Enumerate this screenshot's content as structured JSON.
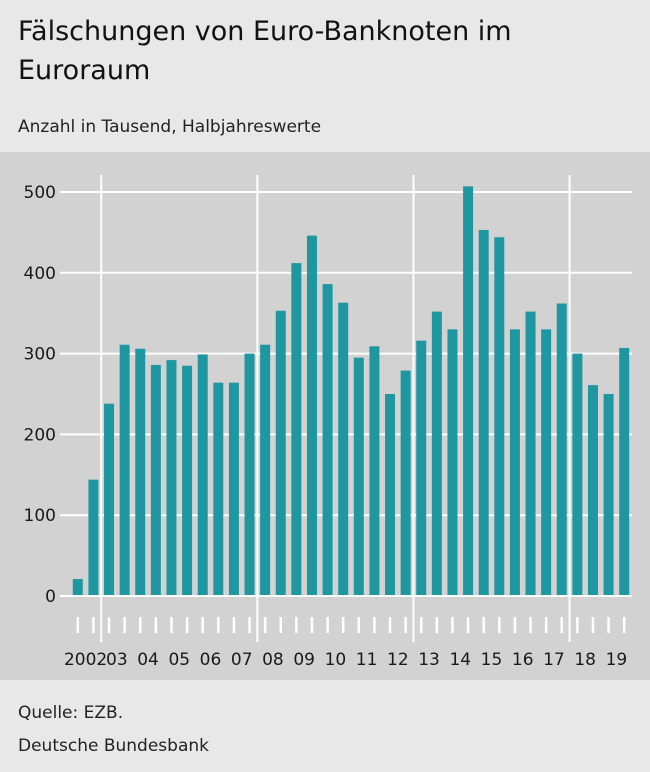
{
  "title": "Fälschungen von Euro-Banknoten im Euroraum",
  "subtitle": "Anzahl in Tausend, Halbjahreswerte",
  "source": "Quelle: EZB.",
  "publisher": "Deutsche Bundesbank",
  "colors": {
    "bar": "#1f97a0",
    "grid": "#ffffff",
    "plot_background": "#d2d2d2",
    "page_background": "#e8e8e8"
  },
  "chart_data": {
    "type": "bar",
    "ylim": [
      0,
      500
    ],
    "yticks": [
      0,
      100,
      200,
      300,
      400,
      500
    ],
    "x_year_labels": [
      "2002",
      "03",
      "04",
      "05",
      "06",
      "07",
      "08",
      "09",
      "10",
      "11",
      "12",
      "13",
      "14",
      "15",
      "16",
      "17",
      "18",
      "19"
    ],
    "categories": [
      "2002 H1",
      "2002 H2",
      "2003 H1",
      "2003 H2",
      "2004 H1",
      "2004 H2",
      "2005 H1",
      "2005 H2",
      "2006 H1",
      "2006 H2",
      "2007 H1",
      "2007 H2",
      "2008 H1",
      "2008 H2",
      "2009 H1",
      "2009 H2",
      "2010 H1",
      "2010 H2",
      "2011 H1",
      "2011 H2",
      "2012 H1",
      "2012 H2",
      "2013 H1",
      "2013 H2",
      "2014 H1",
      "2014 H2",
      "2015 H1",
      "2015 H2",
      "2016 H1",
      "2016 H2",
      "2017 H1",
      "2017 H2",
      "2018 H1",
      "2018 H2",
      "2019 H1",
      "2019 H2"
    ],
    "values": [
      21,
      144,
      238,
      311,
      306,
      286,
      292,
      285,
      299,
      264,
      264,
      300,
      311,
      353,
      412,
      446,
      386,
      363,
      295,
      309,
      250,
      279,
      316,
      352,
      330,
      507,
      453,
      444,
      330,
      352,
      330,
      362,
      300,
      261,
      250,
      307
    ],
    "vertical_gridlines_at_years": [
      "2003",
      "2008",
      "2013",
      "2018"
    ],
    "grid": true
  }
}
